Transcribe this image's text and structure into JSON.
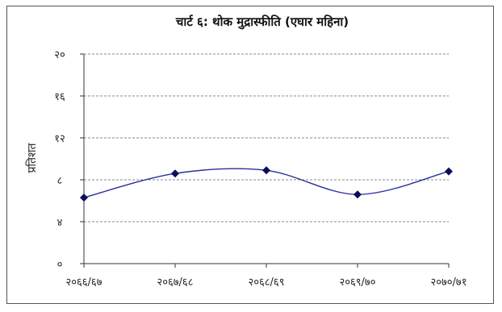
{
  "chart_data": {
    "type": "line",
    "title": "चार्ट ६: थोक मुद्रास्फीति (एघार महिना)",
    "ylabel": "प्रतिशत",
    "xlabel": "",
    "categories": [
      "२०६६/६७",
      "२०६७/६८",
      "२०६८/६९",
      "२०६९/७०",
      "२०७०/७१"
    ],
    "y_tick_labels": [
      "०",
      "४",
      "८",
      "१२",
      "१६",
      "२०"
    ],
    "y_ticks": [
      0,
      4,
      8,
      12,
      16,
      20
    ],
    "ylim": [
      0,
      20
    ],
    "series": [
      {
        "values": [
          6.3,
          8.6,
          8.9,
          6.6,
          8.8
        ]
      }
    ],
    "grid": true,
    "grid_style": "dashed-horizontal",
    "line_color": "#2b2f9a",
    "marker_color": "#0b0f5a",
    "gridline_color": "#888888"
  }
}
